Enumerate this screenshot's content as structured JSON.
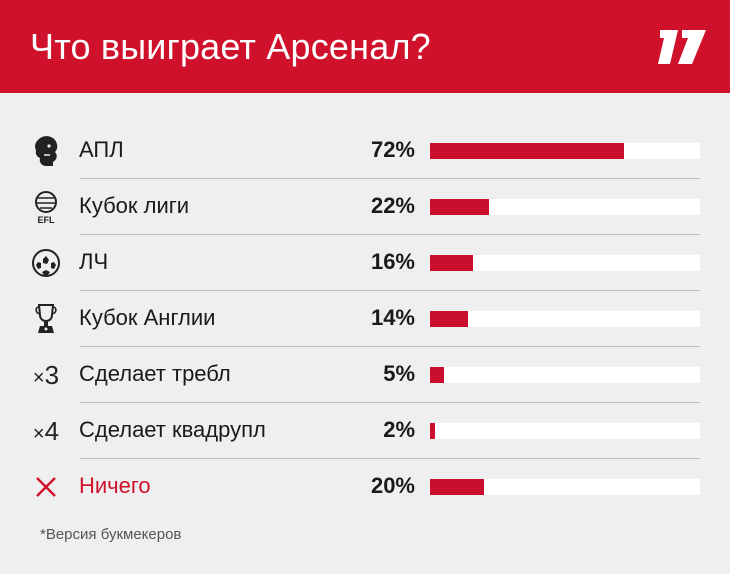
{
  "header": {
    "title": "Что выиграет Арсенал?",
    "logo_icon": "sports-ru-logo",
    "bg_color": "#d0112b"
  },
  "chart_data": {
    "type": "bar",
    "orientation": "horizontal",
    "categories": [
      "АПЛ",
      "Кубок лиги",
      "ЛЧ",
      "Кубок Англии",
      "Сделает требл",
      "Сделает квадрупл",
      "Ничего"
    ],
    "values": [
      72,
      22,
      16,
      14,
      5,
      2,
      20
    ],
    "value_labels": [
      "72%",
      "22%",
      "16%",
      "14%",
      "5%",
      "2%",
      "20%"
    ],
    "icons": [
      "premier-league-lion-icon",
      "efl-ball-icon",
      "champions-league-ball-icon",
      "fa-cup-trophy-icon",
      "x3-icon",
      "x4-icon",
      "cross-icon"
    ],
    "icon_text": [
      "",
      "EFL",
      "",
      "",
      "×3",
      "×4",
      ""
    ],
    "xlim": [
      0,
      100
    ],
    "bar_color": "#c8102e",
    "highlight_color": "#d0112b"
  },
  "footnote": "*Версия букмекеров"
}
